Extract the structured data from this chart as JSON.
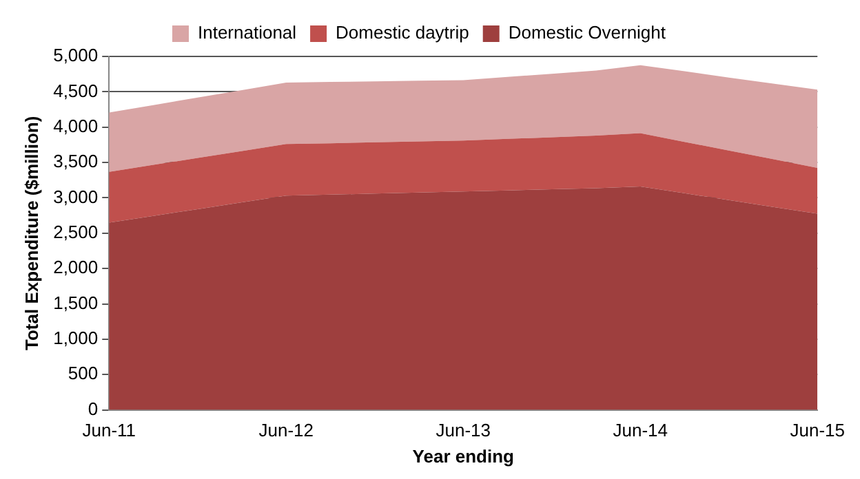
{
  "chart_data": {
    "type": "area",
    "stacked": true,
    "xlabel": "Year ending",
    "ylabel": "Total Expenditure ($million)",
    "categories": [
      "Jun-11",
      null,
      null,
      null,
      "Jun-12",
      null,
      null,
      null,
      "Jun-13",
      null,
      null,
      null,
      "Jun-14",
      null,
      null,
      null,
      "Jun-15"
    ],
    "series": [
      {
        "name": "Domestic Overnight",
        "color": "#9e3f3e",
        "values": [
          2650,
          2745,
          2840,
          2935,
          3030,
          3045,
          3060,
          3075,
          3090,
          3105,
          3120,
          3135,
          3160,
          3064,
          2968,
          2871,
          2775
        ]
      },
      {
        "name": "Domestic daytrip",
        "color": "#c0504d",
        "values": [
          718,
          721,
          724,
          727,
          730,
          727,
          725,
          723,
          720,
          728,
          737,
          745,
          754,
          727,
          701,
          675,
          649
        ]
      },
      {
        "name": "International",
        "color": "#d9a5a5",
        "values": [
          838,
          846,
          854,
          862,
          870,
          867,
          863,
          859,
          855,
          877,
          898,
          920,
          961,
          999,
          1031,
          1069,
          1106
        ]
      }
    ],
    "ylim": [
      0,
      5000
    ],
    "yticks": [
      {
        "value": 0,
        "label": "0"
      },
      {
        "value": 500,
        "label": "500"
      },
      {
        "value": 1000,
        "label": "1,000"
      },
      {
        "value": 1500,
        "label": "1,500"
      },
      {
        "value": 2000,
        "label": "2,000"
      },
      {
        "value": 2500,
        "label": "2,500"
      },
      {
        "value": 3000,
        "label": "3,000"
      },
      {
        "value": 3500,
        "label": "3,500"
      },
      {
        "value": 4000,
        "label": "4,000"
      },
      {
        "value": 4500,
        "label": "4,500"
      },
      {
        "value": 5000,
        "label": "5,000"
      }
    ],
    "grid": "y",
    "legend": "top"
  }
}
